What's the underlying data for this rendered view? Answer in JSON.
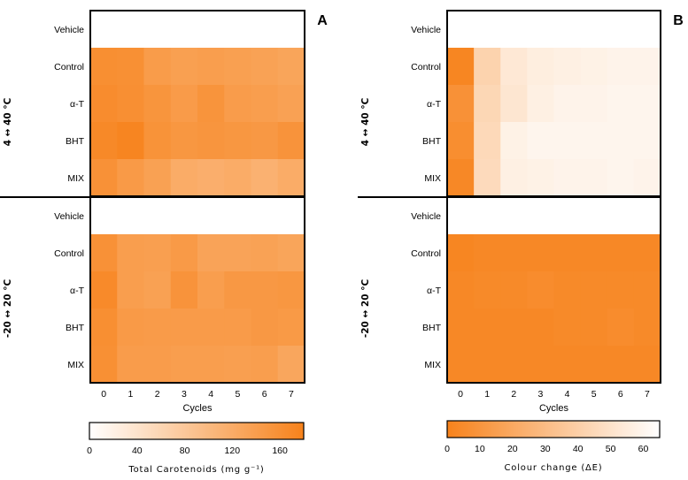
{
  "chart_data": [
    {
      "type": "heatmap",
      "panel_label": "A",
      "xlabel": "Cycles",
      "x": [
        "0",
        "1",
        "2",
        "3",
        "4",
        "5",
        "6",
        "7"
      ],
      "row_labels": [
        "Vehicle",
        "Control",
        "α-T",
        "BHT",
        "MIX"
      ],
      "group_labels": [
        "4 ↔ 40 °C",
        "-20 ↔ 20 °C"
      ],
      "colorbar": {
        "label": "Total Carotenoids (mg g⁻¹)",
        "ticks": [
          "0",
          "40",
          "80",
          "120",
          "160"
        ],
        "range": [
          0,
          180
        ],
        "low_color": "#ffffff",
        "high_color": "#f7821b",
        "direction": "low-to-high"
      },
      "groups": [
        {
          "name": "4 ↔ 40 °C",
          "rows": [
            {
              "label": "Vehicle",
              "values": [
                0,
                0,
                0,
                0,
                0,
                0,
                0,
                0
              ]
            },
            {
              "label": "Control",
              "values": [
                162,
                160,
                143,
                137,
                140,
                137,
                134,
                130
              ]
            },
            {
              "label": "α-T",
              "values": [
                165,
                161,
                153,
                144,
                154,
                142,
                140,
                135
              ]
            },
            {
              "label": "BHT",
              "values": [
                170,
                175,
                156,
                150,
                152,
                150,
                148,
                155
              ]
            },
            {
              "label": "MIX",
              "values": [
                158,
                145,
                136,
                120,
                116,
                120,
                112,
                120
              ]
            }
          ]
        },
        {
          "name": "-20 ↔ 20 °C",
          "rows": [
            {
              "label": "Vehicle",
              "values": [
                0,
                0,
                0,
                0,
                0,
                0,
                0,
                0
              ]
            },
            {
              "label": "Control",
              "values": [
                158,
                140,
                138,
                145,
                132,
                132,
                134,
                130
              ]
            },
            {
              "label": "α-T",
              "values": [
                168,
                140,
                136,
                155,
                140,
                148,
                148,
                150
              ]
            },
            {
              "label": "BHT",
              "values": [
                162,
                145,
                144,
                144,
                144,
                144,
                148,
                146
              ]
            },
            {
              "label": "MIX",
              "values": [
                160,
                142,
                142,
                140,
                140,
                138,
                140,
                128
              ]
            }
          ]
        }
      ]
    },
    {
      "type": "heatmap",
      "panel_label": "B",
      "xlabel": "Cycles",
      "x": [
        "0",
        "1",
        "2",
        "3",
        "4",
        "5",
        "6",
        "7"
      ],
      "row_labels": [
        "Vehicle",
        "Control",
        "α-T",
        "BHT",
        "MIX"
      ],
      "group_labels": [
        "4 ↔ 40 °C",
        "-20 ↔ 20 °C"
      ],
      "colorbar": {
        "label": "Colour change (ΔE)",
        "ticks": [
          "0",
          "10",
          "20",
          "30",
          "40",
          "50",
          "60"
        ],
        "range": [
          0,
          65
        ],
        "low_color": "#f7821b",
        "high_color": "#ffffff",
        "direction": "low-is-orange"
      },
      "groups": [
        {
          "name": "4 ↔ 40 °C",
          "rows": [
            {
              "label": "Vehicle",
              "values": [
                65,
                65,
                65,
                65,
                65,
                65,
                65,
                65
              ]
            },
            {
              "label": "Control",
              "values": [
                2,
                42,
                53,
                56,
                57,
                58,
                59,
                59
              ]
            },
            {
              "label": "α-T",
              "values": [
                8,
                44,
                52,
                57,
                59,
                59,
                60,
                60
              ]
            },
            {
              "label": "BHT",
              "values": [
                6,
                45,
                58,
                60,
                60,
                60,
                60,
                60
              ]
            },
            {
              "label": "MIX",
              "values": [
                3,
                46,
                57,
                58,
                59,
                59,
                60,
                59
              ]
            }
          ]
        },
        {
          "name": "-20 ↔ 20 °C",
          "rows": [
            {
              "label": "Vehicle",
              "values": [
                65,
                65,
                65,
                65,
                65,
                65,
                65,
                65
              ]
            },
            {
              "label": "Control",
              "values": [
                2,
                3,
                3,
                3,
                3,
                3,
                3,
                3
              ]
            },
            {
              "label": "α-T",
              "values": [
                3,
                4,
                4,
                5,
                4,
                4,
                4,
                4
              ]
            },
            {
              "label": "BHT",
              "values": [
                3,
                3,
                3,
                3,
                4,
                4,
                5,
                4
              ]
            },
            {
              "label": "MIX",
              "values": [
                3,
                3,
                3,
                3,
                3,
                3,
                3,
                3
              ]
            }
          ]
        }
      ]
    }
  ]
}
